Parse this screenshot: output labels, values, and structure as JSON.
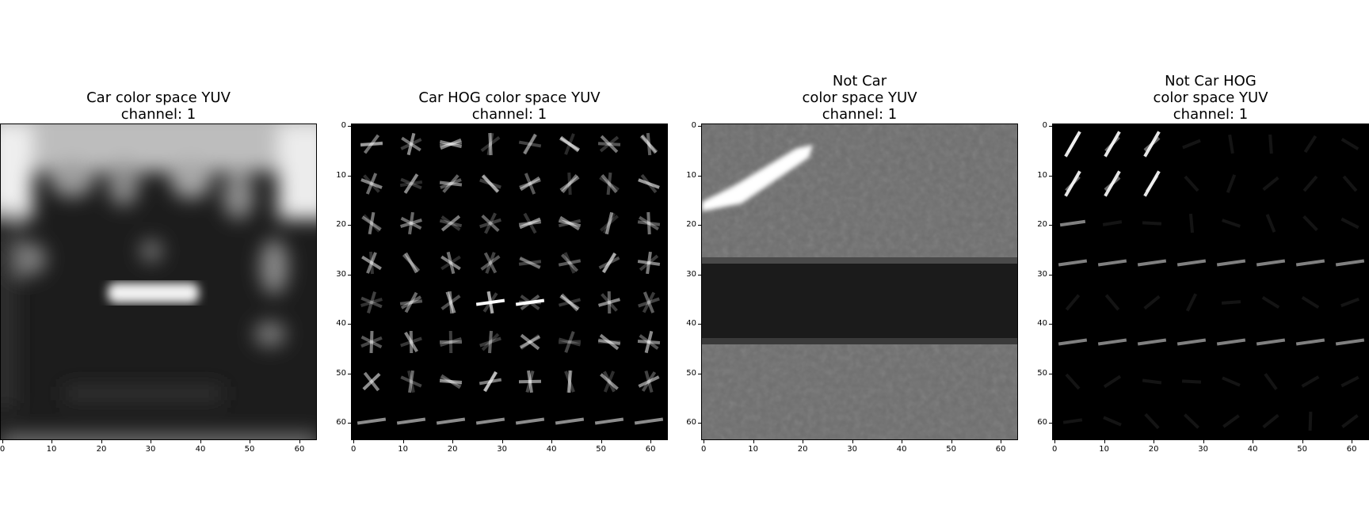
{
  "panels": [
    {
      "id": "car",
      "title_lines": [
        "Car color space YUV",
        "channel: 1"
      ],
      "show_y_ticks": false,
      "image": "car-grayscale"
    },
    {
      "id": "car-hog",
      "title_lines": [
        "Car HOG color space YUV",
        "channel: 1"
      ],
      "show_y_ticks": true,
      "image": "car-hog"
    },
    {
      "id": "notcar",
      "title_lines": [
        "Not Car",
        "color space YUV",
        "channel: 1"
      ],
      "show_y_ticks": true,
      "image": "notcar-grayscale"
    },
    {
      "id": "notcar-hog",
      "title_lines": [
        "Not Car HOG",
        "color space YUV",
        "channel: 1"
      ],
      "show_y_ticks": true,
      "image": "notcar-hog"
    }
  ],
  "x_ticks": [
    "0",
    "10",
    "20",
    "30",
    "40",
    "50",
    "60"
  ],
  "y_ticks": [
    "0",
    "10",
    "20",
    "30",
    "40",
    "50",
    "60"
  ],
  "colors": {
    "background": "#ffffff",
    "image_black": "#000000",
    "hog_stroke": "#ffffff"
  }
}
